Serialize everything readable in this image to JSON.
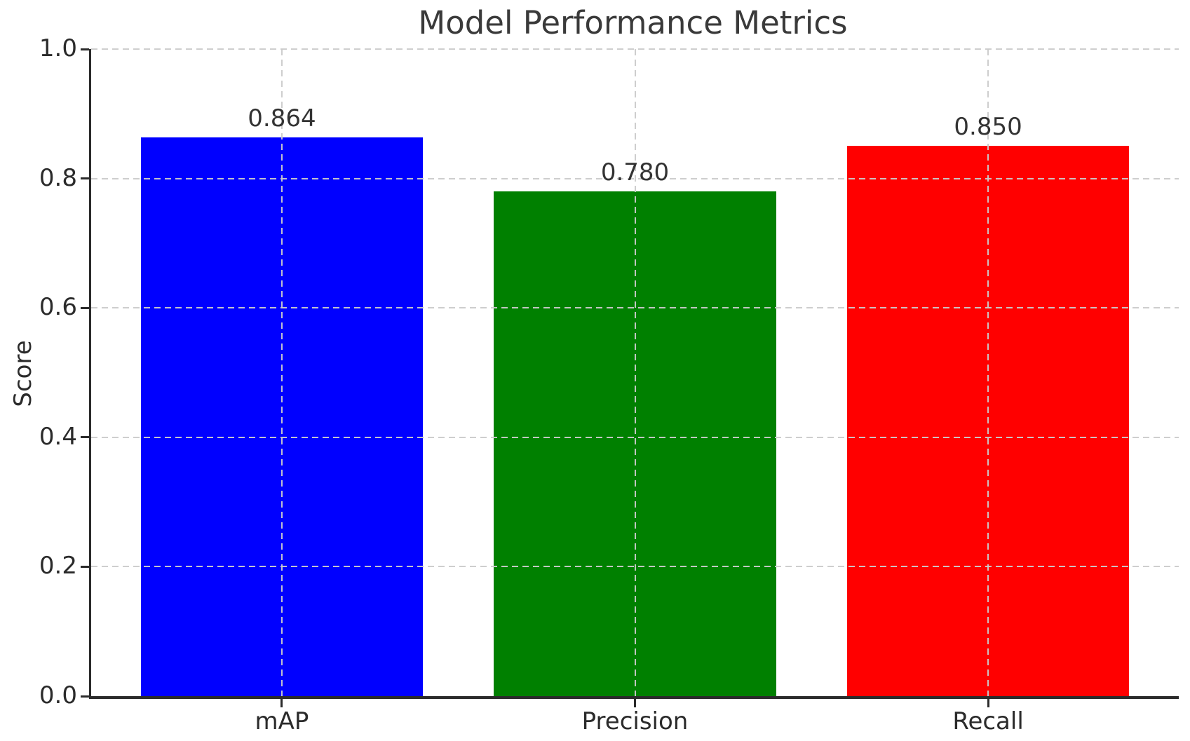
{
  "figure": {
    "background": "#ffffff"
  },
  "chart_data": {
    "type": "bar",
    "title": "Model Performance Metrics",
    "xlabel": "",
    "ylabel": "Score",
    "categories": [
      "mAP",
      "Precision",
      "Recall"
    ],
    "values": [
      0.864,
      0.78,
      0.85
    ],
    "value_labels": [
      "0.864",
      "0.780",
      "0.850"
    ],
    "bar_colors": [
      "#0000ff",
      "#008000",
      "#ff0000"
    ],
    "ylim": [
      0.0,
      1.0
    ],
    "yticks": [
      0.0,
      0.2,
      0.4,
      0.6,
      0.8,
      1.0
    ],
    "ytick_labels": [
      "0.0",
      "0.2",
      "0.4",
      "0.6",
      "0.8",
      "1.0"
    ],
    "grid": {
      "visible": true,
      "style": "dashed",
      "color": "#cbcbcb",
      "axes": "both",
      "above_bars": true
    },
    "legend": {
      "visible": false
    },
    "spines": {
      "left": true,
      "bottom": true,
      "top": false,
      "right": false
    },
    "text_color": "#2b2b2b",
    "title_color": "#3a3a3a",
    "layout": {
      "bar_slot_units": 3.08,
      "first_center_unit": 0.54,
      "bar_width_units": 0.8
    }
  }
}
